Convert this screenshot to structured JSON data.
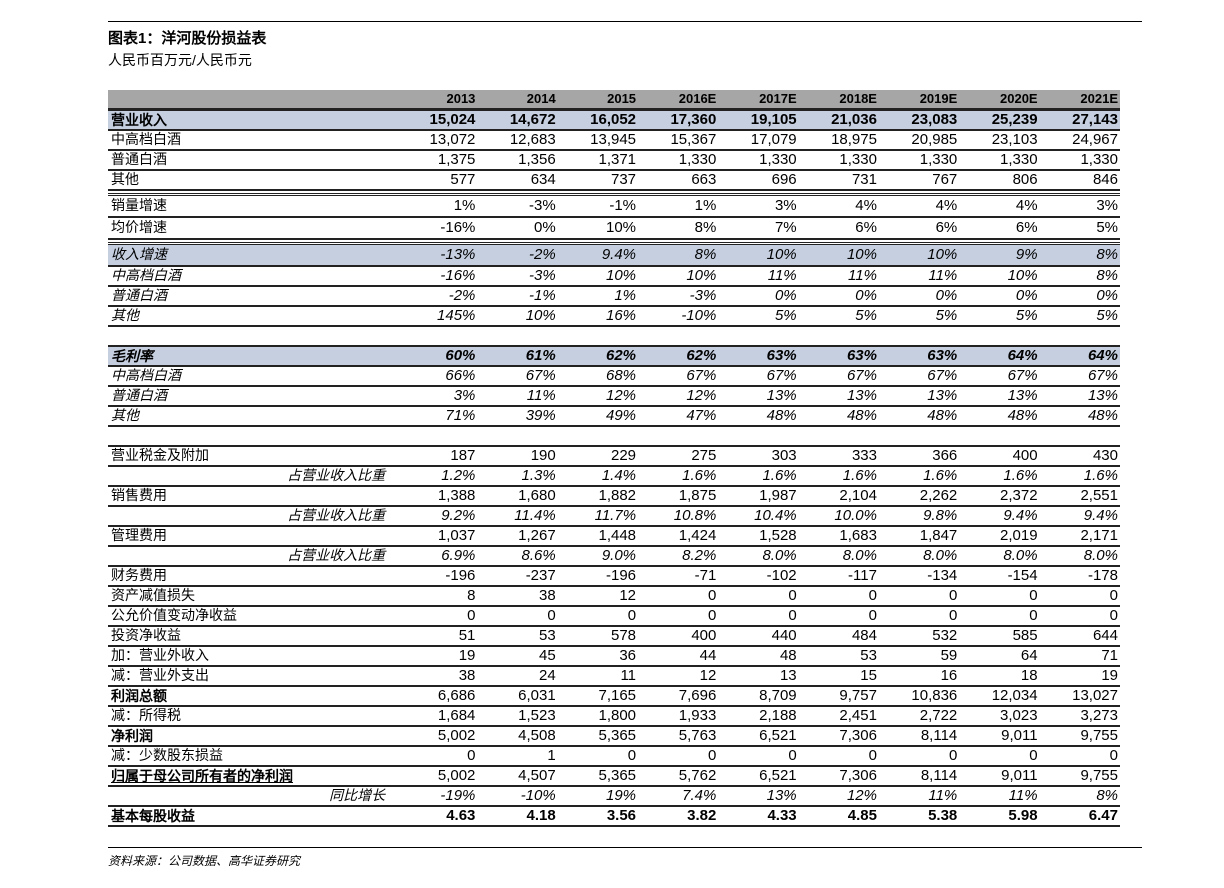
{
  "title": "图表1：洋河股份损益表",
  "subtitle": "人民币百万元/人民币元",
  "table": {
    "columns": [
      "2013",
      "2014",
      "2015",
      "2016E",
      "2017E",
      "2018E",
      "2019E",
      "2020E",
      "2021E"
    ],
    "rows": [
      {
        "label": "营业收入",
        "values": [
          "15,024",
          "14,672",
          "16,052",
          "17,360",
          "19,105",
          "21,036",
          "23,083",
          "25,239",
          "27,143"
        ],
        "bold": true,
        "shaded": true
      },
      {
        "label": "中高档白酒",
        "values": [
          "13,072",
          "12,683",
          "13,945",
          "15,367",
          "17,079",
          "18,975",
          "20,985",
          "23,103",
          "24,967"
        ]
      },
      {
        "label": "普通白酒",
        "values": [
          "1,375",
          "1,356",
          "1,371",
          "1,330",
          "1,330",
          "1,330",
          "1,330",
          "1,330",
          "1,330"
        ]
      },
      {
        "label": "其他",
        "values": [
          "577",
          "634",
          "737",
          "663",
          "696",
          "731",
          "767",
          "806",
          "846"
        ]
      },
      {
        "spacer": true
      },
      {
        "label": "销量增速",
        "values": [
          "1%",
          "-3%",
          "-1%",
          "1%",
          "3%",
          "4%",
          "4%",
          "4%",
          "3%"
        ],
        "tall": true
      },
      {
        "label": "均价增速",
        "values": [
          "-16%",
          "0%",
          "10%",
          "8%",
          "7%",
          "6%",
          "6%",
          "6%",
          "5%"
        ],
        "tall": true
      },
      {
        "spacer": true
      },
      {
        "label": "收入增速",
        "values": [
          "-13%",
          "-2%",
          "9.4%",
          "8%",
          "10%",
          "10%",
          "10%",
          "9%",
          "8%"
        ],
        "italic": true,
        "shaded": true,
        "tall": true
      },
      {
        "label": "中高档白酒",
        "values": [
          "-16%",
          "-3%",
          "10%",
          "10%",
          "11%",
          "11%",
          "11%",
          "10%",
          "8%"
        ],
        "italic": true
      },
      {
        "label": "普通白酒",
        "values": [
          "-2%",
          "-1%",
          "1%",
          "-3%",
          "0%",
          "0%",
          "0%",
          "0%",
          "0%"
        ],
        "italic": true
      },
      {
        "label": "其他",
        "values": [
          "145%",
          "10%",
          "16%",
          "-10%",
          "5%",
          "5%",
          "5%",
          "5%",
          "5%"
        ],
        "italic": true
      },
      {
        "blank": true
      },
      {
        "label": "毛利率",
        "values": [
          "60%",
          "61%",
          "62%",
          "62%",
          "63%",
          "63%",
          "63%",
          "64%",
          "64%"
        ],
        "italic": true,
        "bold": true,
        "shaded": true
      },
      {
        "label": "中高档白酒",
        "values": [
          "66%",
          "67%",
          "68%",
          "67%",
          "67%",
          "67%",
          "67%",
          "67%",
          "67%"
        ],
        "italic": true
      },
      {
        "label": "普通白酒",
        "values": [
          "3%",
          "11%",
          "12%",
          "12%",
          "13%",
          "13%",
          "13%",
          "13%",
          "13%"
        ],
        "italic": true
      },
      {
        "label": "其他",
        "values": [
          "71%",
          "39%",
          "49%",
          "47%",
          "48%",
          "48%",
          "48%",
          "48%",
          "48%"
        ],
        "italic": true
      },
      {
        "blank": true
      },
      {
        "label": "营业税金及附加",
        "values": [
          "187",
          "190",
          "229",
          "275",
          "303",
          "333",
          "366",
          "400",
          "430"
        ]
      },
      {
        "label": "占营业收入比重",
        "values": [
          "1.2%",
          "1.3%",
          "1.4%",
          "1.6%",
          "1.6%",
          "1.6%",
          "1.6%",
          "1.6%",
          "1.6%"
        ],
        "italic": true,
        "indent": true
      },
      {
        "label": "销售费用",
        "values": [
          "1,388",
          "1,680",
          "1,882",
          "1,875",
          "1,987",
          "2,104",
          "2,262",
          "2,372",
          "2,551"
        ]
      },
      {
        "label": "占营业收入比重",
        "values": [
          "9.2%",
          "11.4%",
          "11.7%",
          "10.8%",
          "10.4%",
          "10.0%",
          "9.8%",
          "9.4%",
          "9.4%"
        ],
        "italic": true,
        "indent": true
      },
      {
        "label": "管理费用",
        "values": [
          "1,037",
          "1,267",
          "1,448",
          "1,424",
          "1,528",
          "1,683",
          "1,847",
          "2,019",
          "2,171"
        ]
      },
      {
        "label": "占营业收入比重",
        "values": [
          "6.9%",
          "8.6%",
          "9.0%",
          "8.2%",
          "8.0%",
          "8.0%",
          "8.0%",
          "8.0%",
          "8.0%"
        ],
        "italic": true,
        "indent": true
      },
      {
        "label": "财务费用",
        "values": [
          "-196",
          "-237",
          "-196",
          "-71",
          "-102",
          "-117",
          "-134",
          "-154",
          "-178"
        ]
      },
      {
        "label": "资产减值损失",
        "values": [
          "8",
          "38",
          "12",
          "0",
          "0",
          "0",
          "0",
          "0",
          "0"
        ]
      },
      {
        "label": "公允价值变动净收益",
        "values": [
          "0",
          "0",
          "0",
          "0",
          "0",
          "0",
          "0",
          "0",
          "0"
        ]
      },
      {
        "label": "投资净收益",
        "values": [
          "51",
          "53",
          "578",
          "400",
          "440",
          "484",
          "532",
          "585",
          "644"
        ]
      },
      {
        "label": "加：营业外收入",
        "values": [
          "19",
          "45",
          "36",
          "44",
          "48",
          "53",
          "59",
          "64",
          "71"
        ]
      },
      {
        "label": "减：营业外支出",
        "values": [
          "38",
          "24",
          "11",
          "12",
          "13",
          "15",
          "16",
          "18",
          "19"
        ]
      },
      {
        "label": "利润总额",
        "values": [
          "6,686",
          "6,031",
          "7,165",
          "7,696",
          "8,709",
          "9,757",
          "10,836",
          "12,034",
          "13,027"
        ],
        "boldLabel": true
      },
      {
        "label": "减：所得税",
        "values": [
          "1,684",
          "1,523",
          "1,800",
          "1,933",
          "2,188",
          "2,451",
          "2,722",
          "3,023",
          "3,273"
        ]
      },
      {
        "label": "净利润",
        "values": [
          "5,002",
          "4,508",
          "5,365",
          "5,763",
          "6,521",
          "7,306",
          "8,114",
          "9,011",
          "9,755"
        ],
        "boldLabel": true
      },
      {
        "label": "减：少数股东损益",
        "values": [
          "0",
          "1",
          "0",
          "0",
          "0",
          "0",
          "0",
          "0",
          "0"
        ]
      },
      {
        "label": "归属于母公司所有者的净利润",
        "values": [
          "5,002",
          "4,507",
          "5,365",
          "5,762",
          "6,521",
          "7,306",
          "8,114",
          "9,011",
          "9,755"
        ],
        "boldLabel": true
      },
      {
        "label": "同比增长",
        "values": [
          "-19%",
          "-10%",
          "19%",
          "7.4%",
          "13%",
          "12%",
          "11%",
          "11%",
          "8%"
        ],
        "italic": true,
        "indent": true
      },
      {
        "label": "基本每股收益",
        "values": [
          "4.63",
          "4.18",
          "3.56",
          "3.82",
          "4.33",
          "4.85",
          "5.38",
          "5.98",
          "6.47"
        ],
        "bold": true
      }
    ]
  },
  "source": "资料来源：公司数据、高华证券研究",
  "colors": {
    "header_bg": "#a6a6a6",
    "highlight_bg": "#c5cfe0"
  }
}
